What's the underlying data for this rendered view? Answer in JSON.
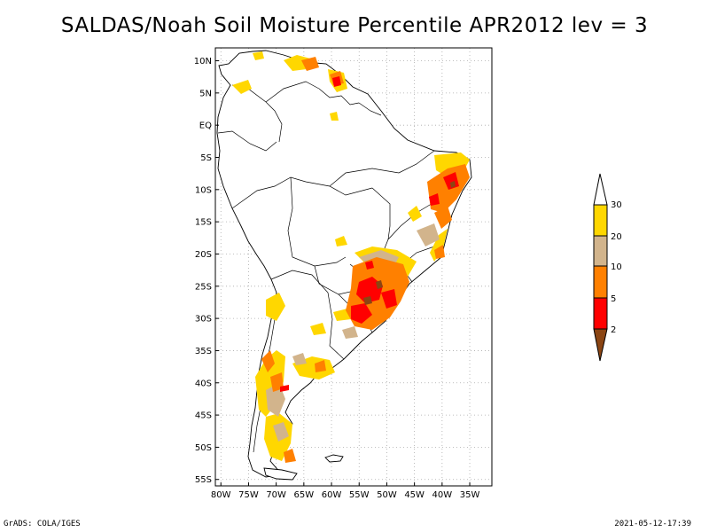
{
  "title": "SALDAS/Noah Soil Moisture Percentile APR2012 lev = 3",
  "map": {
    "region": "South America",
    "lon_range": [
      -81,
      -31
    ],
    "lat_range": [
      -56,
      12
    ],
    "lon_ticks": [
      "80W",
      "75W",
      "70W",
      "65W",
      "60W",
      "55W",
      "50W",
      "45W",
      "40W",
      "35W"
    ],
    "lat_ticks": [
      "10N",
      "5N",
      "EQ",
      "5S",
      "10S",
      "15S",
      "20S",
      "25S",
      "30S",
      "35S",
      "40S",
      "45S",
      "50S",
      "55S"
    ],
    "gridlines": "dotted"
  },
  "legend": {
    "labels": [
      "30",
      "20",
      "10",
      "5",
      "2"
    ],
    "colors": {
      "above_30": "#ffffff",
      "20_30": "#ffd700",
      "10_20": "#d2b48c",
      "5_10": "#ff8000",
      "2_5": "#ff0000",
      "below_2": "#8b4513"
    }
  },
  "footer": {
    "left": "GrADS: COLA/IGES",
    "right": "2021-05-12-17:39"
  }
}
